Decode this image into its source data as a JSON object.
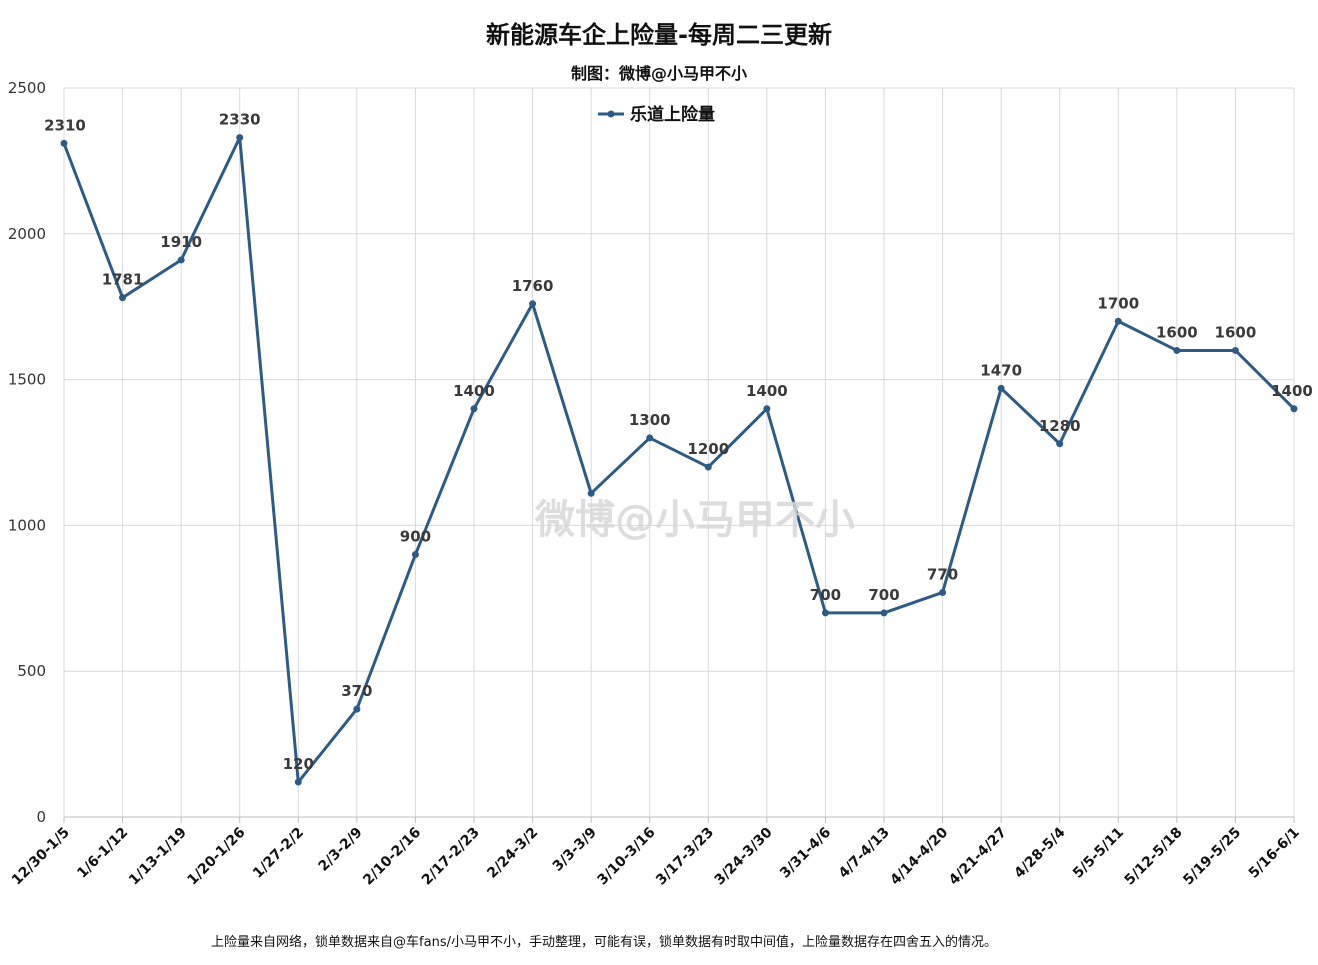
{
  "chart_data": {
    "type": "line",
    "title": "新能源车企上险量-每周二三更新",
    "subtitle": "制图：微博@小马甲不小",
    "categories": [
      "12/30-1/5",
      "1/6-1/12",
      "1/13-1/19",
      "1/20-1/26",
      "1/27-2/2",
      "2/3-2/9",
      "2/10-2/16",
      "2/17-2/23",
      "2/24-3/2",
      "3/3-3/9",
      "3/10-3/16",
      "3/17-3/23",
      "3/24-3/30",
      "3/31-4/6",
      "4/7-4/13",
      "4/14-4/20",
      "4/21-4/27",
      "4/28-5/4",
      "5/5-5/11",
      "5/12-5/18",
      "5/19-5/25",
      "5/16-6/1"
    ],
    "series": [
      {
        "name": "乐道上险量",
        "color": "#2e5b86",
        "values": [
          2310,
          1781,
          1910,
          2330,
          120,
          370,
          900,
          1400,
          1760,
          1110,
          1300,
          1200,
          1400,
          700,
          700,
          770,
          1470,
          1280,
          1700,
          1600,
          1600,
          1400
        ],
        "labels": [
          "2310",
          "1781",
          "1910",
          "2330",
          "120",
          "370",
          "900",
          "1400",
          "1760",
          "",
          "1300",
          "1200",
          "1400",
          "700",
          "700",
          "770",
          "1470",
          "1280",
          "1700",
          "1600",
          "1600",
          "1400"
        ]
      }
    ],
    "ylim": [
      0,
      2500
    ],
    "yticks": [
      "0",
      "500",
      "1000",
      "1500",
      "2000",
      "2500"
    ],
    "grid": true,
    "legend_position": "top-center",
    "footnote": "上险量来自网络，锁单数据来自@车fans/小马甲不小，手动整理，可能有误，锁单数据有时取中间值，上险量数据存在四舍五入的情况。",
    "watermark": "微博@小马甲不小"
  },
  "colors": {
    "line": "#2e5b86",
    "grid": "#d9d9d9",
    "background": "#ffffff"
  }
}
